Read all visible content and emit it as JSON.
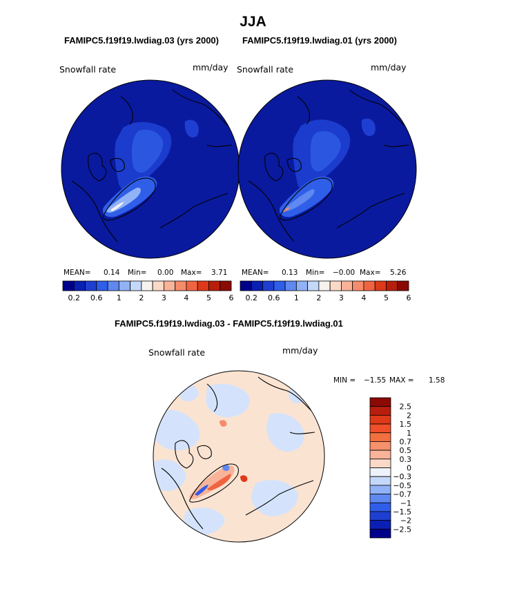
{
  "page_title": "JJA",
  "panels": [
    {
      "case": "FAMIPC5.f19f19.lwdiag.03 (yrs 2000)",
      "variable": "Snowfall rate",
      "units": "mm/day",
      "mean_label": "MEAN=",
      "mean": "0.14",
      "min_label": "Min=",
      "min": "0.00",
      "max_label": "Max=",
      "max": "3.71"
    },
    {
      "case": "FAMIPC5.f19f19.lwdiag.01 (yrs 2000)",
      "variable": "Snowfall rate",
      "units": "mm/day",
      "mean_label": "MEAN=",
      "mean": "0.13",
      "min_label": "Min=",
      "min": "−0.00",
      "max_label": "Max=",
      "max": "5.26"
    }
  ],
  "diff": {
    "title": "FAMIPC5.f19f19.lwdiag.03 - FAMIPC5.f19f19.lwdiag.01",
    "variable": "Snowfall rate",
    "units": "mm/day",
    "min_label": "MIN =",
    "min": "−1.55",
    "max_label": "MAX =",
    "max": "1.58"
  },
  "chart_data": [
    {
      "type": "heatmap",
      "projection": "north-polar-stereographic",
      "variable": "Snowfall rate",
      "units": "mm/day",
      "colorbar": {
        "orientation": "horizontal",
        "colors": [
          "#00008b",
          "#0a1fb4",
          "#1f3fd2",
          "#2f5ee8",
          "#5f89f0",
          "#91b2f6",
          "#c4d8fa",
          "#f6f2ee",
          "#fbd9c7",
          "#f8b399",
          "#f58c6c",
          "#f06441",
          "#de3918",
          "#b81e0c",
          "#8c0a04"
        ],
        "tick_labels": [
          "0.2",
          "0.6",
          "1",
          "2",
          "3",
          "4",
          "5",
          "6"
        ]
      },
      "stats": {
        "mean": 0.14,
        "min": 0.0,
        "max": 3.71
      }
    },
    {
      "type": "heatmap",
      "projection": "north-polar-stereographic",
      "variable": "Snowfall rate",
      "units": "mm/day",
      "colorbar": {
        "orientation": "horizontal",
        "colors": [
          "#00008b",
          "#0a1fb4",
          "#1f3fd2",
          "#2f5ee8",
          "#5f89f0",
          "#91b2f6",
          "#c4d8fa",
          "#f6f2ee",
          "#fbd9c7",
          "#f8b399",
          "#f58c6c",
          "#f06441",
          "#de3918",
          "#b81e0c",
          "#8c0a04"
        ],
        "tick_labels": [
          "0.2",
          "0.6",
          "1",
          "2",
          "3",
          "4",
          "5",
          "6"
        ]
      },
      "stats": {
        "mean": 0.13,
        "min": -0.0,
        "max": 5.26
      }
    },
    {
      "type": "heatmap",
      "projection": "north-polar-stereographic",
      "variable": "Snowfall rate",
      "units": "mm/day",
      "colorbar": {
        "orientation": "vertical",
        "colors": [
          "#8c0a04",
          "#b81e0c",
          "#de3918",
          "#f04f2a",
          "#f2703f",
          "#f5916b",
          "#f8b399",
          "#fbd9c7",
          "#eef2fa",
          "#c4d8fa",
          "#91b2f6",
          "#5f89f0",
          "#2f5ee8",
          "#1f3fd2",
          "#0a1fb4",
          "#00008b"
        ],
        "tick_labels": [
          "2.5",
          "2",
          "1.5",
          "1",
          "0.7",
          "0.5",
          "0.3",
          "0",
          "−0.3",
          "−0.5",
          "−0.7",
          "−1",
          "−1.5",
          "−2",
          "−2.5"
        ]
      },
      "stats": {
        "min": -1.55,
        "max": 1.58
      }
    }
  ]
}
